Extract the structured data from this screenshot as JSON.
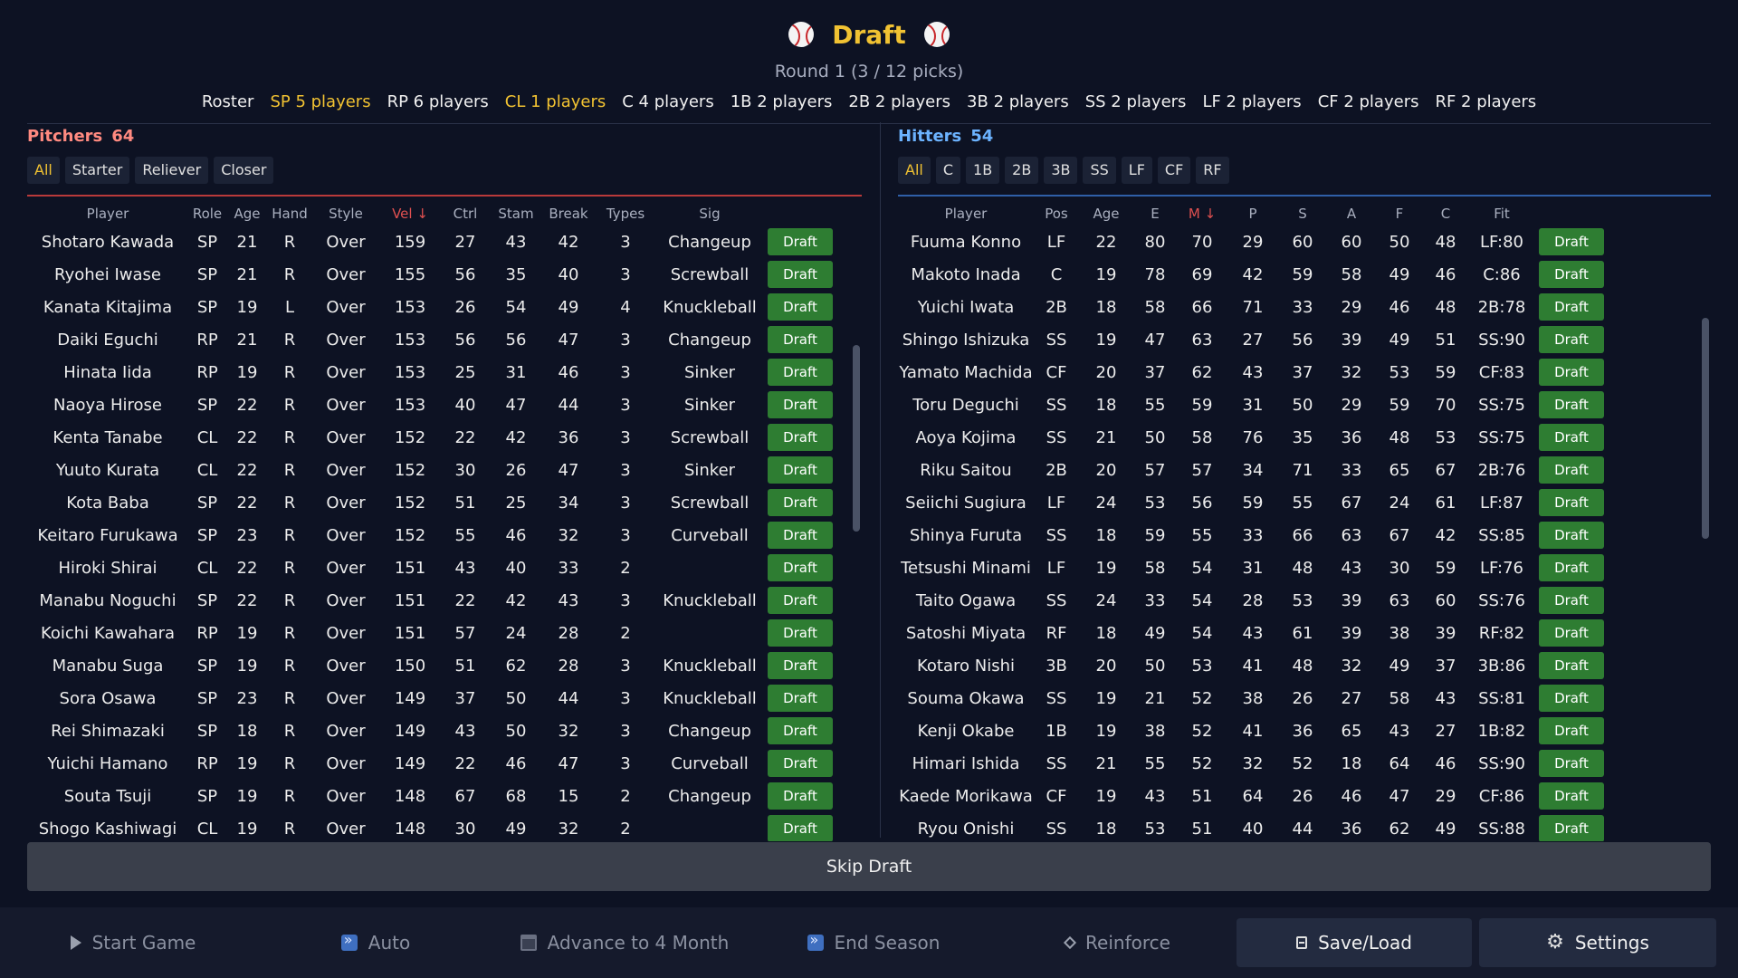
{
  "header": {
    "title": "Draft",
    "round": "Round 1  (3 / 12 picks)"
  },
  "roster_tabs": [
    {
      "label": "Roster",
      "highlight": false
    },
    {
      "label": "SP 5 players",
      "highlight": true
    },
    {
      "label": "RP 6 players",
      "highlight": false
    },
    {
      "label": "CL 1 players",
      "highlight": true
    },
    {
      "label": "C 4 players",
      "highlight": false
    },
    {
      "label": "1B 2 players",
      "highlight": false
    },
    {
      "label": "2B 2 players",
      "highlight": false
    },
    {
      "label": "3B 2 players",
      "highlight": false
    },
    {
      "label": "SS 2 players",
      "highlight": false
    },
    {
      "label": "LF 2 players",
      "highlight": false
    },
    {
      "label": "CF 2 players",
      "highlight": false
    },
    {
      "label": "RF 2 players",
      "highlight": false
    }
  ],
  "pitchers": {
    "title": "Pitchers",
    "count": "64",
    "filters": [
      "All",
      "Starter",
      "Reliever",
      "Closer"
    ],
    "active_filter": "All",
    "columns": [
      "Player",
      "Role",
      "Age",
      "Hand",
      "Style",
      "Vel ↓",
      "Ctrl",
      "Stam",
      "Break",
      "Types",
      "Sig"
    ],
    "draft_label": "Draft",
    "rows": [
      [
        "Shotaro Kawada",
        "SP",
        "21",
        "R",
        "Over",
        "159",
        "27",
        "43",
        "42",
        "3",
        "Changeup"
      ],
      [
        "Ryohei Iwase",
        "SP",
        "21",
        "R",
        "Over",
        "155",
        "56",
        "35",
        "40",
        "3",
        "Screwball"
      ],
      [
        "Kanata Kitajima",
        "SP",
        "19",
        "L",
        "Over",
        "153",
        "26",
        "54",
        "49",
        "4",
        "Knuckleball"
      ],
      [
        "Daiki Eguchi",
        "RP",
        "21",
        "R",
        "Over",
        "153",
        "56",
        "56",
        "47",
        "3",
        "Changeup"
      ],
      [
        "Hinata Iida",
        "RP",
        "19",
        "R",
        "Over",
        "153",
        "25",
        "31",
        "46",
        "3",
        "Sinker"
      ],
      [
        "Naoya Hirose",
        "SP",
        "22",
        "R",
        "Over",
        "153",
        "40",
        "47",
        "44",
        "3",
        "Sinker"
      ],
      [
        "Kenta Tanabe",
        "CL",
        "22",
        "R",
        "Over",
        "152",
        "22",
        "42",
        "36",
        "3",
        "Screwball"
      ],
      [
        "Yuuto Kurata",
        "CL",
        "22",
        "R",
        "Over",
        "152",
        "30",
        "26",
        "47",
        "3",
        "Sinker"
      ],
      [
        "Kota Baba",
        "SP",
        "22",
        "R",
        "Over",
        "152",
        "51",
        "25",
        "34",
        "3",
        "Screwball"
      ],
      [
        "Keitaro Furukawa",
        "SP",
        "23",
        "R",
        "Over",
        "152",
        "55",
        "46",
        "32",
        "3",
        "Curveball"
      ],
      [
        "Hiroki Shirai",
        "CL",
        "22",
        "R",
        "Over",
        "151",
        "43",
        "40",
        "33",
        "2",
        ""
      ],
      [
        "Manabu Noguchi",
        "SP",
        "22",
        "R",
        "Over",
        "151",
        "22",
        "42",
        "43",
        "3",
        "Knuckleball"
      ],
      [
        "Koichi Kawahara",
        "RP",
        "19",
        "R",
        "Over",
        "151",
        "57",
        "24",
        "28",
        "2",
        ""
      ],
      [
        "Manabu Suga",
        "SP",
        "19",
        "R",
        "Over",
        "150",
        "51",
        "62",
        "28",
        "3",
        "Knuckleball"
      ],
      [
        "Sora Osawa",
        "SP",
        "23",
        "R",
        "Over",
        "149",
        "37",
        "50",
        "44",
        "3",
        "Knuckleball"
      ],
      [
        "Rei Shimazaki",
        "SP",
        "18",
        "R",
        "Over",
        "149",
        "43",
        "50",
        "32",
        "3",
        "Changeup"
      ],
      [
        "Yuichi Hamano",
        "RP",
        "19",
        "R",
        "Over",
        "149",
        "22",
        "46",
        "47",
        "3",
        "Curveball"
      ],
      [
        "Souta Tsuji",
        "SP",
        "19",
        "R",
        "Over",
        "148",
        "67",
        "68",
        "15",
        "2",
        "Changeup"
      ],
      [
        "Shogo Kashiwagi",
        "CL",
        "19",
        "R",
        "Over",
        "148",
        "30",
        "49",
        "32",
        "2",
        ""
      ]
    ]
  },
  "hitters": {
    "title": "Hitters",
    "count": "54",
    "filters": [
      "All",
      "C",
      "1B",
      "2B",
      "3B",
      "SS",
      "LF",
      "CF",
      "RF"
    ],
    "active_filter": "All",
    "columns": [
      "Player",
      "Pos",
      "Age",
      "E",
      "M ↓",
      "P",
      "S",
      "A",
      "F",
      "C",
      "Fit"
    ],
    "draft_label": "Draft",
    "rows": [
      [
        "Fuuma Konno",
        "LF",
        "22",
        "80",
        "70",
        "29",
        "60",
        "60",
        "50",
        "48",
        "LF:80"
      ],
      [
        "Makoto Inada",
        "C",
        "19",
        "78",
        "69",
        "42",
        "59",
        "58",
        "49",
        "46",
        "C:86"
      ],
      [
        "Yuichi Iwata",
        "2B",
        "18",
        "58",
        "66",
        "71",
        "33",
        "29",
        "46",
        "48",
        "2B:78"
      ],
      [
        "Shingo Ishizuka",
        "SS",
        "19",
        "47",
        "63",
        "27",
        "56",
        "39",
        "49",
        "51",
        "SS:90"
      ],
      [
        "Yamato Machida",
        "CF",
        "20",
        "37",
        "62",
        "43",
        "37",
        "32",
        "53",
        "59",
        "CF:83"
      ],
      [
        "Toru Deguchi",
        "SS",
        "18",
        "55",
        "59",
        "31",
        "50",
        "29",
        "59",
        "70",
        "SS:75"
      ],
      [
        "Aoya Kojima",
        "SS",
        "21",
        "50",
        "58",
        "76",
        "35",
        "36",
        "48",
        "53",
        "SS:75"
      ],
      [
        "Riku Saitou",
        "2B",
        "20",
        "57",
        "57",
        "34",
        "71",
        "33",
        "65",
        "67",
        "2B:76"
      ],
      [
        "Seiichi Sugiura",
        "LF",
        "24",
        "53",
        "56",
        "59",
        "55",
        "67",
        "24",
        "61",
        "LF:87"
      ],
      [
        "Shinya Furuta",
        "SS",
        "18",
        "59",
        "55",
        "33",
        "66",
        "63",
        "67",
        "42",
        "SS:85"
      ],
      [
        "Tetsushi Minami",
        "LF",
        "19",
        "58",
        "54",
        "31",
        "48",
        "43",
        "30",
        "59",
        "LF:76"
      ],
      [
        "Taito Ogawa",
        "SS",
        "24",
        "33",
        "54",
        "28",
        "53",
        "39",
        "63",
        "60",
        "SS:76"
      ],
      [
        "Satoshi Miyata",
        "RF",
        "18",
        "49",
        "54",
        "43",
        "61",
        "39",
        "38",
        "39",
        "RF:82"
      ],
      [
        "Kotaro Nishi",
        "3B",
        "20",
        "50",
        "53",
        "41",
        "48",
        "32",
        "49",
        "37",
        "3B:86"
      ],
      [
        "Souma Okawa",
        "SS",
        "19",
        "21",
        "52",
        "38",
        "26",
        "27",
        "58",
        "43",
        "SS:81"
      ],
      [
        "Kenji Okabe",
        "1B",
        "19",
        "38",
        "52",
        "41",
        "36",
        "65",
        "43",
        "27",
        "1B:82"
      ],
      [
        "Himari Ishida",
        "SS",
        "21",
        "55",
        "52",
        "32",
        "52",
        "18",
        "64",
        "46",
        "SS:90"
      ],
      [
        "Kaede Morikawa",
        "CF",
        "19",
        "43",
        "51",
        "64",
        "26",
        "46",
        "47",
        "29",
        "CF:86"
      ],
      [
        "Ryou Onishi",
        "SS",
        "18",
        "53",
        "51",
        "40",
        "44",
        "36",
        "62",
        "49",
        "SS:88"
      ]
    ]
  },
  "skip_label": "Skip Draft",
  "bottom_bar": {
    "start_game": "Start Game",
    "auto": "Auto",
    "advance": "Advance to 4 Month",
    "end_season": "End Season",
    "reinforce": "Reinforce",
    "save_load": "Save/Load",
    "settings": "Settings"
  },
  "colors": {
    "accent_gold": "#f1c232",
    "pitchers_red": "#ff8a80",
    "hitters_blue": "#6cb3ff",
    "draft_green": "#2e7d32"
  }
}
